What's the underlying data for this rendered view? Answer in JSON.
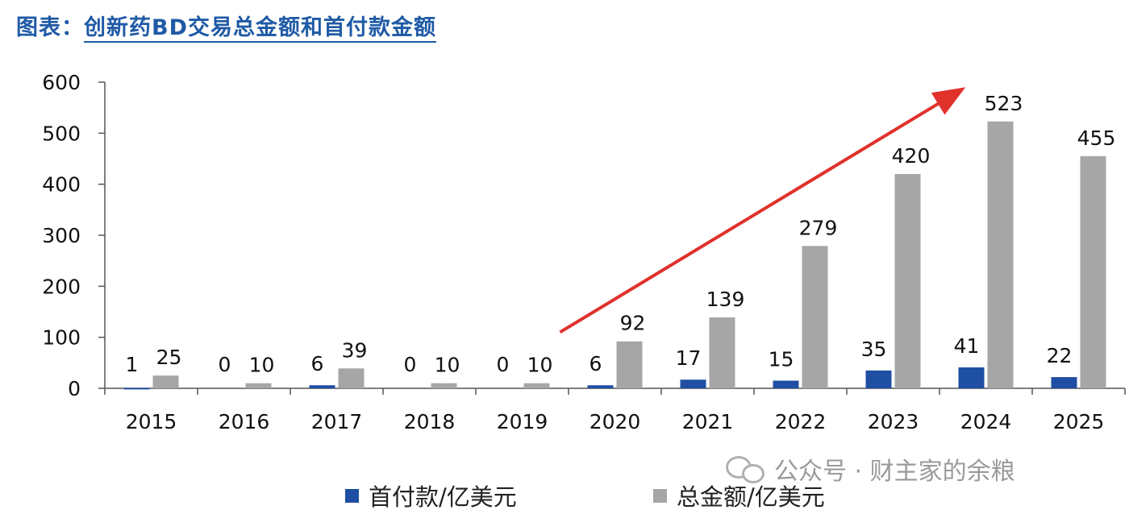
{
  "title": {
    "prefix": "图表：",
    "text": "创新药BD交易总金额和首付款金额"
  },
  "colors": {
    "upfront": "#1f4fa3",
    "total": "#a6a6a6",
    "arrow": "#e0312b",
    "title": "#1f5aa6"
  },
  "watermark": "公众号 · 财主家的余粮",
  "chart_data": {
    "type": "bar",
    "title": "创新药BD交易总金额和首付款金额",
    "xlabel": "",
    "ylabel": "",
    "ylim": [
      0,
      600
    ],
    "yticks": [
      "0",
      "100",
      "200",
      "300",
      "400",
      "500",
      "600"
    ],
    "categories": [
      "2015",
      "2016",
      "2017",
      "2018",
      "2019",
      "2020",
      "2021",
      "2022",
      "2023",
      "2024",
      "2025"
    ],
    "series": [
      {
        "name": "首付款/亿美元",
        "color": "#1f4fa3",
        "values": [
          1,
          0,
          6,
          0,
          0,
          6,
          17,
          15,
          35,
          41,
          22
        ]
      },
      {
        "name": "总金额/亿美元",
        "color": "#a6a6a6",
        "values": [
          25,
          10,
          39,
          10,
          10,
          92,
          139,
          279,
          420,
          523,
          455
        ]
      }
    ],
    "legend_position": "bottom",
    "grid": false,
    "annotations": [
      {
        "type": "arrow",
        "from_category": "2020",
        "from_value": 110,
        "to_category": "2024",
        "to_value": 590,
        "color": "#e0312b"
      }
    ]
  }
}
